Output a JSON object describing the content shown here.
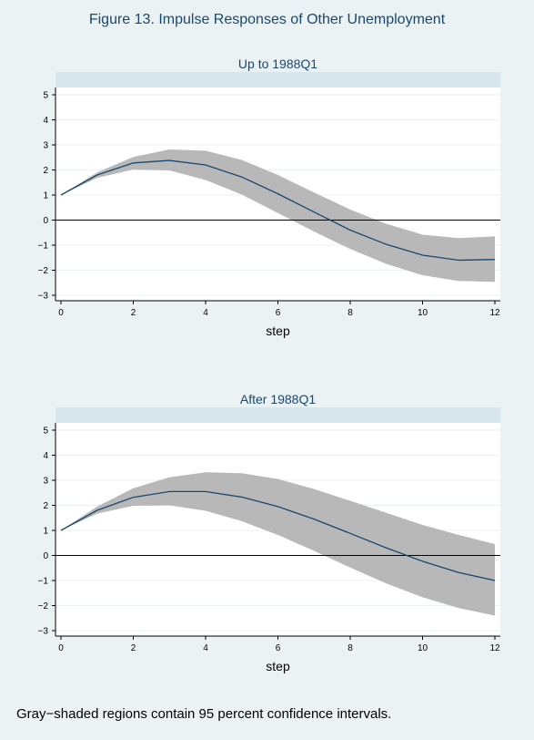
{
  "figure_title": "Figure 13.  Impulse Responses of Other Unemployment",
  "footnote": "Gray−shaded regions contain 95 percent confidence intervals.",
  "colors": {
    "background": "#eaf2f3",
    "strip": "#d7e6ec",
    "plot_area": "#ffffff",
    "band": "#b8b8b8",
    "line": "#1a476f",
    "zero_line": "#000000",
    "grid": "#eaf2f3"
  },
  "chart_data": [
    {
      "type": "line",
      "title": "Up to 1988Q1",
      "xlabel": "step",
      "ylabel": "",
      "xlim": [
        0,
        12
      ],
      "ylim": [
        -3,
        5
      ],
      "x_ticks": [
        0,
        2,
        4,
        6,
        8,
        10,
        12
      ],
      "y_ticks": [
        -3,
        -2,
        -1,
        0,
        1,
        2,
        3,
        4,
        5
      ],
      "x_tick_labels": [
        "0",
        "2",
        "4",
        "6",
        "8",
        "10",
        "12"
      ],
      "y_tick_labels": [
        "−3",
        "−2",
        "−1",
        "0",
        "1",
        "2",
        "3",
        "4",
        "5"
      ],
      "grid": true,
      "zero_line": true,
      "x": [
        0,
        1,
        2,
        3,
        4,
        5,
        6,
        7,
        8,
        9,
        10,
        11,
        12
      ],
      "series": [
        {
          "values": [
            1.0,
            1.8,
            2.28,
            2.38,
            2.2,
            1.72,
            1.05,
            0.32,
            -0.4,
            -0.97,
            -1.4,
            -1.6,
            -1.57
          ]
        }
      ],
      "band": {
        "upper": [
          1.0,
          1.9,
          2.52,
          2.82,
          2.77,
          2.4,
          1.8,
          1.1,
          0.42,
          -0.15,
          -0.58,
          -0.72,
          -0.65
        ],
        "lower": [
          1.0,
          1.68,
          2.02,
          1.98,
          1.6,
          1.02,
          0.28,
          -0.46,
          -1.15,
          -1.75,
          -2.2,
          -2.43,
          -2.47
        ]
      }
    },
    {
      "type": "line",
      "title": "After 1988Q1",
      "xlabel": "step",
      "ylabel": "",
      "xlim": [
        0,
        12
      ],
      "ylim": [
        -3,
        5
      ],
      "x_ticks": [
        0,
        2,
        4,
        6,
        8,
        10,
        12
      ],
      "y_ticks": [
        -3,
        -2,
        -1,
        0,
        1,
        2,
        3,
        4,
        5
      ],
      "x_tick_labels": [
        "0",
        "2",
        "4",
        "6",
        "8",
        "10",
        "12"
      ],
      "y_tick_labels": [
        "−3",
        "−2",
        "−1",
        "0",
        "1",
        "2",
        "3",
        "4",
        "5"
      ],
      "grid": true,
      "zero_line": true,
      "x": [
        0,
        1,
        2,
        3,
        4,
        5,
        6,
        7,
        8,
        9,
        10,
        11,
        12
      ],
      "series": [
        {
          "values": [
            1.0,
            1.8,
            2.32,
            2.55,
            2.55,
            2.33,
            1.95,
            1.45,
            0.88,
            0.3,
            -0.23,
            -0.68,
            -1.0
          ]
        }
      ],
      "band": {
        "upper": [
          1.0,
          1.95,
          2.68,
          3.12,
          3.32,
          3.28,
          3.05,
          2.65,
          2.18,
          1.7,
          1.22,
          0.82,
          0.45
        ],
        "lower": [
          1.0,
          1.67,
          1.98,
          2.0,
          1.78,
          1.37,
          0.82,
          0.18,
          -0.48,
          -1.12,
          -1.67,
          -2.1,
          -2.4
        ]
      }
    }
  ]
}
